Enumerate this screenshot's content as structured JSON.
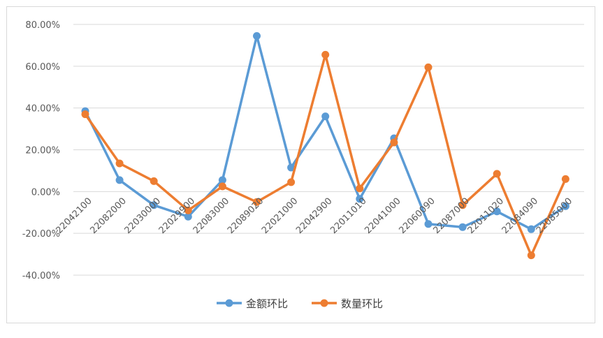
{
  "chart_data": {
    "type": "line",
    "categories": [
      "22042100",
      "22082000",
      "22030000",
      "22029900",
      "22083000",
      "22089020",
      "22021000",
      "22042900",
      "22011010",
      "22041000",
      "22060090",
      "22087000",
      "22011020",
      "22084090",
      "22085000"
    ],
    "series": [
      {
        "name": "金额环比",
        "color": "#5b9bd5",
        "values": [
          38.5,
          5.5,
          -6.5,
          -12.0,
          5.5,
          74.5,
          11.5,
          36.0,
          -3.5,
          25.5,
          -15.5,
          -17.0,
          -9.5,
          -18.0,
          -7.0
        ]
      },
      {
        "name": "数量环比",
        "color": "#ed7d31",
        "values": [
          37.0,
          13.5,
          5.0,
          -9.0,
          2.5,
          -5.0,
          4.5,
          65.5,
          1.5,
          23.5,
          59.5,
          -6.5,
          8.5,
          -30.5,
          6.0
        ]
      }
    ],
    "ylim": [
      -40,
      80
    ],
    "yticks": [
      "80.00%",
      "60.00%",
      "40.00%",
      "20.00%",
      "0.00%",
      "-20.00%",
      "-40.00%"
    ],
    "grid": true,
    "legend": "bottom"
  }
}
